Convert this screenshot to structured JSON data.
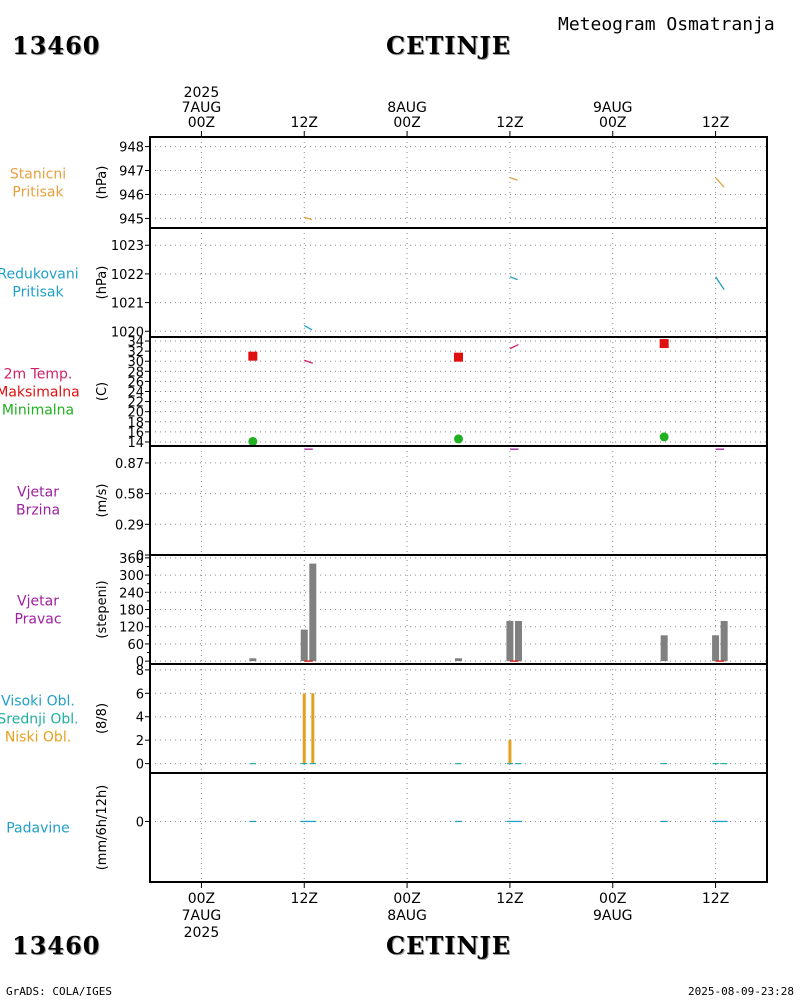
{
  "header": {
    "station_id": "13460",
    "station_name": "CETINJE",
    "product": "Meteogram Osmatranja"
  },
  "footer": {
    "station_id": "13460",
    "station_name": "CETINJE",
    "credit": "GrADS: COLA/IGES",
    "timestamp": "2025-08-09-23:28"
  },
  "time_axis": {
    "start": "2025-08-07 00Z",
    "end": "2025-08-10 00Z",
    "top_labels": [
      {
        "hour": 0,
        "lines": [
          "2025",
          "7AUG",
          "00Z"
        ]
      },
      {
        "hour": 12,
        "lines": [
          "12Z"
        ]
      },
      {
        "hour": 24,
        "lines": [
          "8AUG",
          "00Z"
        ]
      },
      {
        "hour": 36,
        "lines": [
          "12Z"
        ]
      },
      {
        "hour": 48,
        "lines": [
          "9AUG",
          "00Z"
        ]
      },
      {
        "hour": 60,
        "lines": [
          "12Z"
        ]
      }
    ],
    "bottom_labels": [
      {
        "hour": 0,
        "lines": [
          "00Z",
          "7AUG",
          "2025"
        ]
      },
      {
        "hour": 12,
        "lines": [
          "12Z"
        ]
      },
      {
        "hour": 24,
        "lines": [
          "00Z",
          "8AUG"
        ]
      },
      {
        "hour": 36,
        "lines": [
          "12Z"
        ]
      },
      {
        "hour": 48,
        "lines": [
          "00Z",
          "9AUG"
        ]
      },
      {
        "hour": 60,
        "lines": [
          "12Z"
        ]
      }
    ]
  },
  "panel_labels": [
    {
      "lines": [
        {
          "text": "Stanicni",
          "color": "#e6a040"
        },
        {
          "text": "Pritisak",
          "color": "#e6a040"
        }
      ],
      "unit": "(hPa)"
    },
    {
      "lines": [
        {
          "text": "Redukovani",
          "color": "#20a0c8"
        },
        {
          "text": "Pritisak",
          "color": "#20a0c8"
        }
      ],
      "unit": "(hPa)"
    },
    {
      "lines": [
        {
          "text": "2m Temp.",
          "color": "#d0206a"
        },
        {
          "text": "Maksimalna",
          "color": "#e01010"
        },
        {
          "text": "Minimalna",
          "color": "#20b020"
        }
      ],
      "unit": "(C)"
    },
    {
      "lines": [
        {
          "text": "Vjetar",
          "color": "#a020a0"
        },
        {
          "text": "Brzina",
          "color": "#a020a0"
        }
      ],
      "unit": "(m/s)"
    },
    {
      "lines": [
        {
          "text": "Vjetar",
          "color": "#a020a0"
        },
        {
          "text": "Pravac",
          "color": "#a020a0"
        }
      ],
      "unit": "(stepeni)"
    },
    {
      "lines": [
        {
          "text": "Visoki Obl.",
          "color": "#20a0c8"
        },
        {
          "text": "Srednji Obl.",
          "color": "#20b0a0"
        },
        {
          "text": "Niski Obl.",
          "color": "#e6a020"
        }
      ],
      "unit": "(8/8)"
    },
    {
      "lines": [
        {
          "text": "Padavine",
          "color": "#20a0c8"
        }
      ],
      "unit": "(mm/6h/12h)"
    }
  ],
  "chart_data": [
    {
      "type": "line",
      "title": "Stanicni Pritisak",
      "ylabel": "(hPa)",
      "ylim": [
        944.6,
        948.4
      ],
      "yticks": [
        945,
        946,
        947,
        948
      ],
      "yticklabels": [
        "945",
        "946",
        "947",
        "948"
      ],
      "series": [
        {
          "name": "Stanicni Pritisak",
          "color": "#e6a040",
          "segments": [
            {
              "x": [
                12,
                12.9
              ],
              "y": [
                945.05,
                944.95
              ]
            },
            {
              "x": [
                36,
                36.9
              ],
              "y": [
                946.7,
                946.6
              ]
            },
            {
              "x": [
                60,
                61.0
              ],
              "y": [
                946.7,
                946.3
              ]
            }
          ]
        }
      ]
    },
    {
      "type": "line",
      "title": "Redukovani Pritisak",
      "ylabel": "(hPa)",
      "ylim": [
        1019.8,
        1023.6
      ],
      "yticks": [
        1020,
        1021,
        1022,
        1023
      ],
      "yticklabels": [
        "1020",
        "1021",
        "1022",
        "1023"
      ],
      "series": [
        {
          "name": "Redukovani Pritisak",
          "color": "#20a0c8",
          "segments": [
            {
              "x": [
                12,
                12.9
              ],
              "y": [
                1020.2,
                1020.05
              ]
            },
            {
              "x": [
                36,
                36.9
              ],
              "y": [
                1021.9,
                1021.8
              ]
            },
            {
              "x": [
                60,
                61.0
              ],
              "y": [
                1021.9,
                1021.45
              ]
            }
          ]
        }
      ]
    },
    {
      "type": "line",
      "title": "2m Temp. / Maksimalna / Minimalna",
      "ylabel": "(C)",
      "ylim": [
        13.2,
        34.8
      ],
      "yticks": [
        14,
        16,
        18,
        20,
        22,
        24,
        26,
        28,
        30,
        32,
        34
      ],
      "yticklabels": [
        "14",
        "16",
        "18",
        "20",
        "22",
        "24",
        "26",
        "28",
        "30",
        "32",
        "34"
      ],
      "series": [
        {
          "name": "2m Temp.",
          "color": "#d0206a",
          "segments": [
            {
              "x": [
                12,
                13.0
              ],
              "y": [
                30.2,
                29.6
              ]
            },
            {
              "x": [
                36,
                37.0
              ],
              "y": [
                32.5,
                33.3
              ]
            },
            {
              "x": [
                60,
                61.0
              ],
              "y": [
                34.6,
                34.9
              ]
            }
          ]
        },
        {
          "name": "Maksimalna",
          "color": "#e01010",
          "marker": "square",
          "points": [
            {
              "x": 6,
              "y": 31.0
            },
            {
              "x": 30,
              "y": 30.8
            },
            {
              "x": 54,
              "y": 33.5
            }
          ]
        },
        {
          "name": "Minimalna",
          "color": "#20b020",
          "marker": "circle",
          "points": [
            {
              "x": 6,
              "y": 14.1
            },
            {
              "x": 30,
              "y": 14.6
            },
            {
              "x": 54,
              "y": 15.0
            }
          ]
        }
      ]
    },
    {
      "type": "line",
      "title": "Vjetar Brzina",
      "ylabel": "(m/s)",
      "ylim": [
        0,
        1.03
      ],
      "yticks": [
        0,
        0.29,
        0.58,
        0.87
      ],
      "yticklabels": [
        "0",
        "0.29",
        "0.58",
        "0.87"
      ],
      "series": [
        {
          "name": "Vjetar Brzina",
          "color": "#a020a0",
          "segments": [
            {
              "x": [
                12,
                13.0
              ],
              "y": [
                1.0,
                1.0
              ]
            },
            {
              "x": [
                36,
                37.0
              ],
              "y": [
                1.0,
                1.0
              ]
            },
            {
              "x": [
                60,
                61.0
              ],
              "y": [
                1.0,
                1.0
              ]
            }
          ]
        }
      ]
    },
    {
      "type": "bar",
      "title": "Vjetar Pravac",
      "ylabel": "(stepeni)",
      "ylim": [
        -10,
        370
      ],
      "yticks": [
        0,
        60,
        120,
        180,
        240,
        300,
        360
      ],
      "yticklabels": [
        "0",
        "60",
        "120",
        "180",
        "240",
        "300",
        "360"
      ],
      "yticks_minor": [
        30,
        90,
        150,
        210,
        270,
        330
      ],
      "series": [
        {
          "name": "Vjetar Pravac",
          "color": "#808080",
          "x": [
            6,
            12,
            13,
            30,
            36,
            37,
            54,
            60,
            61
          ],
          "values": [
            10,
            110,
            340,
            10,
            140,
            140,
            90,
            90,
            140
          ]
        },
        {
          "name": "marker",
          "color": "#e01010",
          "segments": [
            {
              "x": [
                12,
                13.0
              ],
              "y": [
                0,
                0
              ]
            },
            {
              "x": [
                36,
                37.0
              ],
              "y": [
                0,
                0
              ]
            },
            {
              "x": [
                60,
                61.0
              ],
              "y": [
                0,
                0
              ]
            }
          ]
        }
      ]
    },
    {
      "type": "bar",
      "title": "Visoki / Srednji / Niski Obl.",
      "ylabel": "(8/8)",
      "ylim": [
        -0.8,
        8.5
      ],
      "yticks": [
        0,
        2,
        4,
        6,
        8
      ],
      "yticklabels": [
        "0",
        "2",
        "4",
        "6",
        "8"
      ],
      "series": [
        {
          "name": "Niski Obl.",
          "color": "#e6a020",
          "x": [
            12,
            13,
            36
          ],
          "values": [
            6,
            6,
            2
          ]
        },
        {
          "name": "Visoki Obl.",
          "color": "#20a0c8",
          "x": [
            6,
            12,
            13,
            30,
            36,
            37,
            54,
            60,
            61
          ],
          "values": [
            0,
            0,
            0,
            0,
            0,
            0,
            0,
            0,
            0
          ]
        },
        {
          "name": "Srednji Obl.",
          "color": "#20b0a0",
          "x": [
            6,
            12,
            13,
            30,
            36,
            37,
            54,
            60,
            61
          ],
          "values": [
            0,
            0,
            0,
            0,
            0,
            0,
            0,
            0,
            0
          ]
        }
      ]
    },
    {
      "type": "line",
      "title": "Padavine",
      "ylabel": "(mm/6h/12h)",
      "ylim": [
        -2.5,
        2.0
      ],
      "yticks": [
        0
      ],
      "yticklabels": [
        "0"
      ],
      "series": [
        {
          "name": "Padavine",
          "color": "#20a0c8",
          "segments": [
            {
              "x": [
                5.6,
                6.4
              ],
              "y": [
                0,
                0
              ]
            },
            {
              "x": [
                11.6,
                13.4
              ],
              "y": [
                0,
                0
              ]
            },
            {
              "x": [
                29.6,
                30.4
              ],
              "y": [
                0,
                0
              ]
            },
            {
              "x": [
                35.6,
                37.4
              ],
              "y": [
                0,
                0
              ]
            },
            {
              "x": [
                53.6,
                54.4
              ],
              "y": [
                0,
                0
              ]
            },
            {
              "x": [
                59.6,
                61.4
              ],
              "y": [
                0,
                0
              ]
            }
          ]
        }
      ]
    }
  ]
}
